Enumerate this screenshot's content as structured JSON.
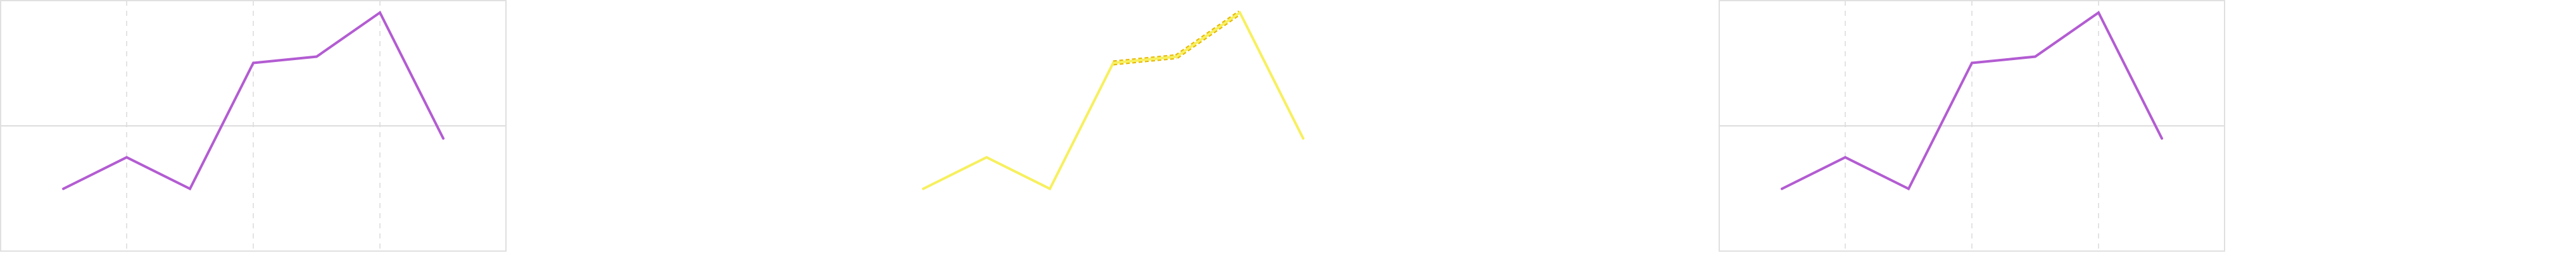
{
  "chart_data": [
    {
      "type": "line",
      "x": [
        1,
        2,
        3,
        4,
        5,
        6,
        7
      ],
      "series": [
        {
          "values": [
            -1.0,
            -0.5,
            -1.0,
            1.0,
            1.1,
            1.8,
            -0.2
          ]
        }
      ],
      "ylim": [
        -2,
        2
      ],
      "grid": true,
      "line_color": "#b35cd2",
      "grid_color": "#e3e3e3",
      "axis_color": "#dddddd"
    },
    {
      "type": "line",
      "x": [
        1,
        2,
        3,
        4,
        5,
        6,
        7
      ],
      "series": [
        {
          "values": [
            -1.0,
            -0.5,
            -1.0,
            1.0,
            1.1,
            1.8,
            -0.2
          ]
        }
      ],
      "ylim": [
        -2,
        2
      ],
      "grid": false,
      "line_color": "#f7f05e",
      "highlight_color": "#e7b800",
      "highlight_segments": [
        [
          4,
          5
        ],
        [
          5,
          6
        ]
      ]
    },
    {
      "type": "line",
      "x": [
        1,
        2,
        3,
        4,
        5,
        6,
        7
      ],
      "series": [
        {
          "values": [
            -1.0,
            -0.5,
            -1.0,
            1.0,
            1.1,
            1.8,
            -0.2
          ]
        }
      ],
      "ylim": [
        -2,
        2
      ],
      "grid": true,
      "line_color": "#b35cd2",
      "grid_color": "#e3e3e3",
      "axis_color": "#dddddd"
    }
  ]
}
